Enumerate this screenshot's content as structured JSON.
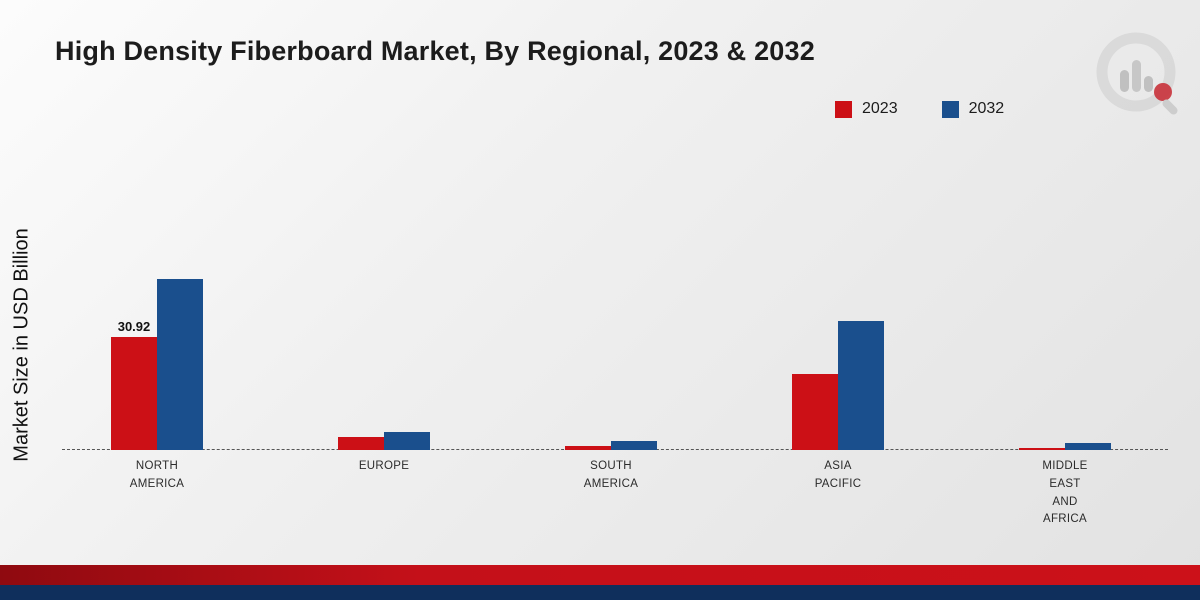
{
  "title": "High Density Fiberboard Market, By Regional, 2023 & 2032",
  "ylabel": "Market Size in USD Billion",
  "chart_data": {
    "type": "bar",
    "title": "High Density Fiberboard Market, By Regional, 2023 & 2032",
    "xlabel": "",
    "ylabel": "Market Size in USD Billion",
    "categories": [
      "NORTH AMERICA",
      "EUROPE",
      "SOUTH AMERICA",
      "ASIA PACIFIC",
      "MIDDLE EAST AND AFRICA"
    ],
    "category_lines": [
      [
        "NORTH",
        "AMERICA"
      ],
      [
        "EUROPE"
      ],
      [
        "SOUTH",
        "AMERICA"
      ],
      [
        "ASIA",
        "PACIFIC"
      ],
      [
        "MIDDLE",
        "EAST",
        "AND",
        "AFRICA"
      ]
    ],
    "series": [
      {
        "name": "2023",
        "color": "#cc1016",
        "values": [
          30.92,
          3.6,
          1.1,
          20.8,
          0.6
        ]
      },
      {
        "name": "2032",
        "color": "#1a4f8d",
        "values": [
          46.8,
          4.8,
          2.4,
          35.2,
          1.9
        ]
      }
    ],
    "data_labels": [
      {
        "series_index": 0,
        "category_index": 0,
        "text": "30.92"
      }
    ],
    "ylim": [
      0,
      50
    ],
    "grid": false,
    "legend_position": "top-right",
    "baseline_style": "dashed"
  },
  "legend": {
    "items": [
      {
        "label": "2023",
        "color": "#cc1016"
      },
      {
        "label": "2032",
        "color": "#1a4f8d"
      }
    ]
  },
  "branding": {
    "logo_icon": "market-research-future-logo"
  }
}
